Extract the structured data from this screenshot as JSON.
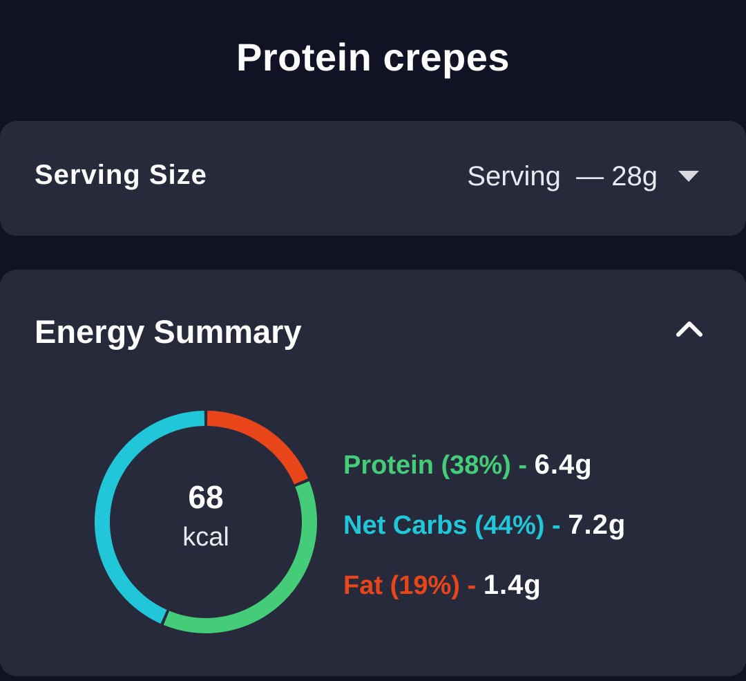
{
  "page": {
    "title": "Protein crepes"
  },
  "serving": {
    "label": "Serving Size",
    "value": "Serving  — 28g"
  },
  "energy": {
    "title": "Energy Summary",
    "kcal": "68",
    "kcal_unit": "kcal",
    "macros": [
      {
        "name": "Protein",
        "percent": 38,
        "percent_label": "(38%)",
        "separator": "-",
        "amount": "6.4g",
        "color": "#45cc78"
      },
      {
        "name": "Net Carbs",
        "percent": 44,
        "percent_label": "(44%)",
        "separator": "-",
        "amount": "7.2g",
        "color": "#21c6d8"
      },
      {
        "name": "Fat",
        "percent": 19,
        "percent_label": "(19%)",
        "separator": "-",
        "amount": "1.4g",
        "color": "#e8451b"
      }
    ]
  },
  "colors": {
    "background": "#111325",
    "card": "#272a3b",
    "protein": "#45cc78",
    "carbs": "#21c6d8",
    "fat": "#e8451b"
  }
}
